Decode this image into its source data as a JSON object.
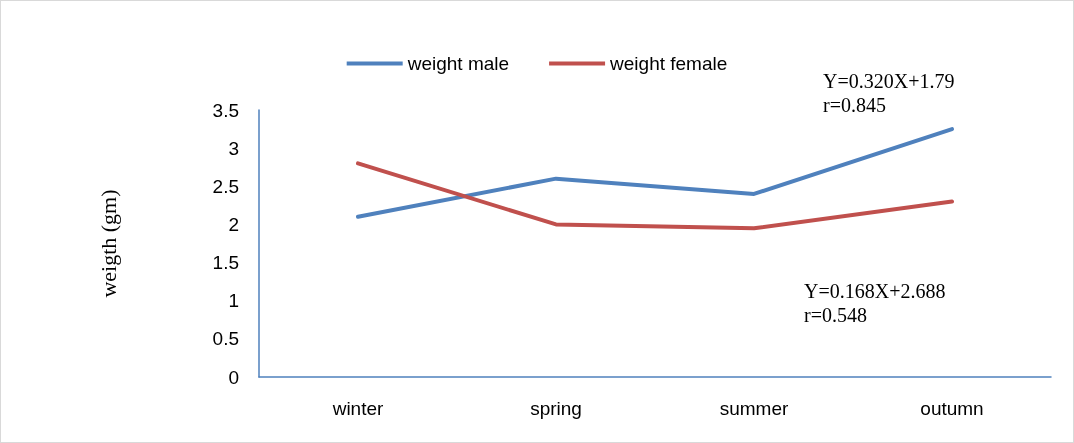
{
  "chart_data": {
    "type": "line",
    "ylabel": "weigth (gm)",
    "categories": [
      "winter",
      "spring",
      "summer",
      "outumn"
    ],
    "series": [
      {
        "name": "weight male",
        "color": "#4f81bd",
        "values": [
          2.1,
          2.6,
          2.4,
          3.25
        ]
      },
      {
        "name": "weight female",
        "color": "#c0504d",
        "values": [
          2.8,
          2.0,
          1.95,
          2.3
        ]
      }
    ],
    "ylim": [
      0,
      3.5
    ],
    "yticks": [
      0,
      0.5,
      1,
      1.5,
      2,
      2.5,
      3,
      3.5
    ],
    "grid": false,
    "legend": "top",
    "marker": "none",
    "line_style": "solid",
    "annotations": [
      "Y=0.320X+1.79\nr=0.845",
      "Y=0.168X+2.688\nr=0.548"
    ]
  }
}
